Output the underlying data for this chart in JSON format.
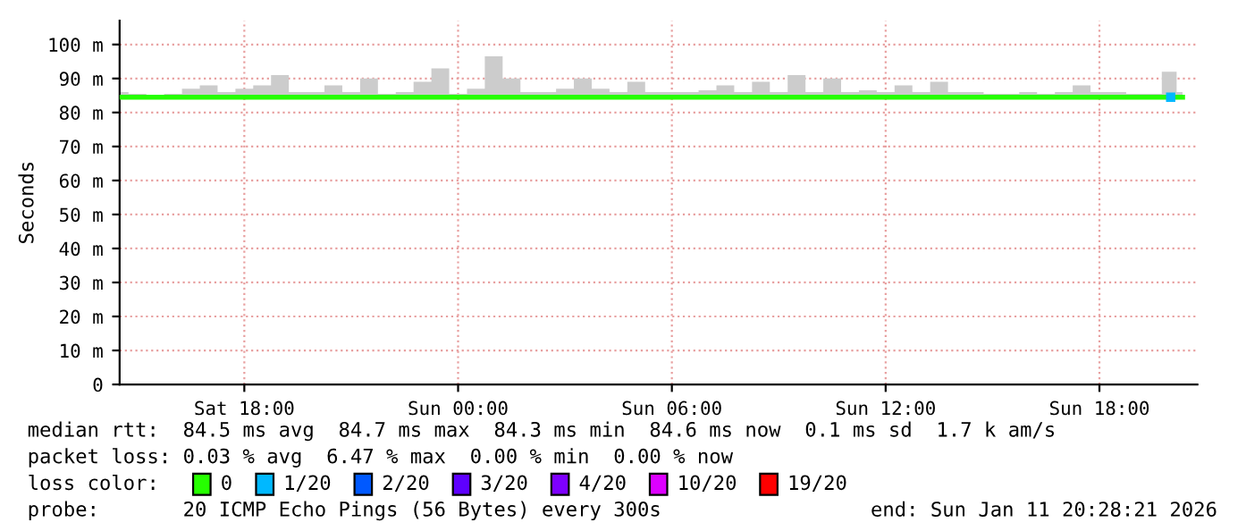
{
  "chart_data": {
    "type": "line",
    "ylabel": "Seconds",
    "x": [
      "2026-01-10T14:30",
      "2026-01-10T15:00",
      "2026-01-10T15:30",
      "2026-01-10T16:00",
      "2026-01-10T16:30",
      "2026-01-10T17:00",
      "2026-01-10T17:30",
      "2026-01-10T18:00",
      "2026-01-10T18:30",
      "2026-01-10T19:00",
      "2026-01-10T19:30",
      "2026-01-10T20:00",
      "2026-01-10T20:30",
      "2026-01-10T21:00",
      "2026-01-10T21:30",
      "2026-01-10T22:00",
      "2026-01-10T22:30",
      "2026-01-10T23:00",
      "2026-01-10T23:30",
      "2026-01-11T00:00",
      "2026-01-11T00:30",
      "2026-01-11T01:00",
      "2026-01-11T01:30",
      "2026-01-11T02:00",
      "2026-01-11T02:30",
      "2026-01-11T03:00",
      "2026-01-11T03:30",
      "2026-01-11T04:00",
      "2026-01-11T04:30",
      "2026-01-11T05:00",
      "2026-01-11T05:30",
      "2026-01-11T06:00",
      "2026-01-11T06:30",
      "2026-01-11T07:00",
      "2026-01-11T07:30",
      "2026-01-11T08:00",
      "2026-01-11T08:30",
      "2026-01-11T09:00",
      "2026-01-11T09:30",
      "2026-01-11T10:00",
      "2026-01-11T10:30",
      "2026-01-11T11:00",
      "2026-01-11T11:30",
      "2026-01-11T12:00",
      "2026-01-11T12:30",
      "2026-01-11T13:00",
      "2026-01-11T13:30",
      "2026-01-11T14:00",
      "2026-01-11T14:30",
      "2026-01-11T15:00",
      "2026-01-11T15:30",
      "2026-01-11T16:00",
      "2026-01-11T16:30",
      "2026-01-11T17:00",
      "2026-01-11T17:30",
      "2026-01-11T18:00",
      "2026-01-11T18:30",
      "2026-01-11T19:00",
      "2026-01-11T19:30",
      "2026-01-11T20:00",
      "2026-01-11T20:20"
    ],
    "xlim": [
      "2026-01-10T14:30",
      "2026-01-11T20:45"
    ],
    "xticks": [
      {
        "value": "2026-01-10T18:00",
        "label": "Sat 18:00"
      },
      {
        "value": "2026-01-11T00:00",
        "label": "Sun 00:00"
      },
      {
        "value": "2026-01-11T06:00",
        "label": "Sun 06:00"
      },
      {
        "value": "2026-01-11T12:00",
        "label": "Sun 12:00"
      },
      {
        "value": "2026-01-11T18:00",
        "label": "Sun 18:00"
      }
    ],
    "ylim": [
      0,
      107
    ],
    "yticks": [
      0,
      {
        "value": 10,
        "label": "10 m"
      },
      {
        "value": 20,
        "label": "20 m"
      },
      {
        "value": 30,
        "label": "30 m"
      },
      {
        "value": 40,
        "label": "40 m"
      },
      {
        "value": 50,
        "label": "50 m"
      },
      {
        "value": 60,
        "label": "60 m"
      },
      {
        "value": 70,
        "label": "70 m"
      },
      {
        "value": 80,
        "label": "80 m"
      },
      {
        "value": 90,
        "label": "90 m"
      },
      {
        "value": 100,
        "label": "100 m"
      }
    ],
    "grid": true,
    "legend": "bottom",
    "legend_title": "loss color:",
    "series": [
      {
        "name": "0",
        "color": "#26ff00",
        "values": [
          84.5,
          84.5,
          84.5,
          84.5,
          84.5,
          84.5,
          84.5,
          84.5,
          84.5,
          84.5,
          84.5,
          84.5,
          84.5,
          84.5,
          84.5,
          84.5,
          84.5,
          84.5,
          84.5,
          84.5,
          84.5,
          84.5,
          84.5,
          84.5,
          84.5,
          84.5,
          84.5,
          84.5,
          84.5,
          84.5,
          84.5,
          84.5,
          84.5,
          84.5,
          84.5,
          84.5,
          84.5,
          84.5,
          84.5,
          84.5,
          84.5,
          84.5,
          84.5,
          84.5,
          84.5,
          84.5,
          84.5,
          84.5,
          84.5,
          84.5,
          84.5,
          84.5,
          84.5,
          84.5,
          84.5,
          84.5,
          84.5,
          84.5,
          84.5,
          84.5,
          84.5
        ],
        "lower": [
          84.3,
          84.3,
          84.3,
          84.3,
          84.3,
          84.3,
          84.3,
          84.3,
          84.3,
          84.3,
          84.3,
          84.3,
          84.3,
          84.3,
          84.3,
          84.3,
          84.3,
          84.3,
          84.3,
          84.3,
          84.3,
          84.3,
          84.3,
          84.3,
          84.3,
          84.3,
          84.3,
          84.3,
          84.3,
          84.3,
          84.3,
          84.3,
          84.3,
          84.3,
          84.3,
          84.3,
          84.3,
          84.3,
          84.3,
          84.3,
          84.3,
          84.3,
          84.3,
          84.3,
          84.3,
          84.3,
          84.3,
          84.3,
          84.3,
          84.3,
          84.3,
          84.3,
          84.3,
          84.3,
          84.3,
          84.3,
          84.3,
          84.3,
          84.3,
          84.3,
          84.3
        ],
        "upper": [
          86,
          85.5,
          85,
          85.5,
          87,
          88,
          86,
          87,
          88,
          91,
          86,
          86,
          88,
          86,
          90,
          85.5,
          86,
          89,
          93,
          85.5,
          87,
          96.5,
          90,
          86,
          86,
          87,
          90,
          87,
          86,
          89,
          86,
          86,
          86,
          86.5,
          88,
          86,
          89,
          86,
          91,
          86,
          90,
          86,
          86.5,
          86,
          88,
          86,
          89,
          86,
          86,
          85.5,
          85.5,
          86,
          85.5,
          86,
          88,
          86,
          86,
          85.5,
          85.5,
          92,
          86
        ]
      },
      {
        "name": "1/20",
        "type": "scatter",
        "color": "#00b8ff",
        "values": [
          null,
          null,
          null,
          null,
          null,
          null,
          null,
          null,
          null,
          null,
          null,
          null,
          null,
          null,
          null,
          null,
          null,
          null,
          null,
          null,
          null,
          null,
          null,
          null,
          null,
          null,
          null,
          null,
          null,
          null,
          null,
          null,
          null,
          null,
          null,
          null,
          null,
          null,
          null,
          null,
          null,
          null,
          null,
          null,
          null,
          null,
          null,
          null,
          null,
          null,
          null,
          null,
          null,
          null,
          null,
          null,
          null,
          null,
          null,
          84.5,
          null
        ]
      },
      {
        "name": "2/20",
        "color": "#0059ff",
        "values": [
          null,
          null,
          null,
          null,
          null,
          null,
          null,
          null,
          null,
          null,
          null,
          null,
          null,
          null,
          null,
          null,
          null,
          null,
          null,
          null,
          null,
          null,
          null,
          null,
          null,
          null,
          null,
          null,
          null,
          null,
          null,
          null,
          null,
          null,
          null,
          null,
          null,
          null,
          null,
          null,
          null,
          null,
          null,
          null,
          null,
          null,
          null,
          null,
          null,
          null,
          null,
          null,
          null,
          null,
          null,
          null,
          null,
          null,
          null,
          null,
          null
        ]
      },
      {
        "name": "3/20",
        "color": "#5e00ff",
        "values": [
          null,
          null,
          null,
          null,
          null,
          null,
          null,
          null,
          null,
          null,
          null,
          null,
          null,
          null,
          null,
          null,
          null,
          null,
          null,
          null,
          null,
          null,
          null,
          null,
          null,
          null,
          null,
          null,
          null,
          null,
          null,
          null,
          null,
          null,
          null,
          null,
          null,
          null,
          null,
          null,
          null,
          null,
          null,
          null,
          null,
          null,
          null,
          null,
          null,
          null,
          null,
          null,
          null,
          null,
          null,
          null,
          null,
          null,
          null,
          null,
          null
        ]
      },
      {
        "name": "4/20",
        "color": "#7e00ff",
        "values": [
          null,
          null,
          null,
          null,
          null,
          null,
          null,
          null,
          null,
          null,
          null,
          null,
          null,
          null,
          null,
          null,
          null,
          null,
          null,
          null,
          null,
          null,
          null,
          null,
          null,
          null,
          null,
          null,
          null,
          null,
          null,
          null,
          null,
          null,
          null,
          null,
          null,
          null,
          null,
          null,
          null,
          null,
          null,
          null,
          null,
          null,
          null,
          null,
          null,
          null,
          null,
          null,
          null,
          null,
          null,
          null,
          null,
          null,
          null,
          null,
          null
        ]
      },
      {
        "name": "10/20",
        "color": "#dd00ff",
        "values": [
          null,
          null,
          null,
          null,
          null,
          null,
          null,
          null,
          null,
          null,
          null,
          null,
          null,
          null,
          null,
          null,
          null,
          null,
          null,
          null,
          null,
          null,
          null,
          null,
          null,
          null,
          null,
          null,
          null,
          null,
          null,
          null,
          null,
          null,
          null,
          null,
          null,
          null,
          null,
          null,
          null,
          null,
          null,
          null,
          null,
          null,
          null,
          null,
          null,
          null,
          null,
          null,
          null,
          null,
          null,
          null,
          null,
          null,
          null,
          null,
          null
        ]
      },
      {
        "name": "19/20",
        "color": "#ff0000",
        "values": [
          null,
          null,
          null,
          null,
          null,
          null,
          null,
          null,
          null,
          null,
          null,
          null,
          null,
          null,
          null,
          null,
          null,
          null,
          null,
          null,
          null,
          null,
          null,
          null,
          null,
          null,
          null,
          null,
          null,
          null,
          null,
          null,
          null,
          null,
          null,
          null,
          null,
          null,
          null,
          null,
          null,
          null,
          null,
          null,
          null,
          null,
          null,
          null,
          null,
          null,
          null,
          null,
          null,
          null,
          null,
          null,
          null,
          null,
          null,
          null,
          null
        ]
      }
    ],
    "annotations": [
      "median rtt:  84.5 ms avg  84.7 ms max  84.3 ms min  84.6 ms now  0.1 ms sd  1.7 k am/s",
      "packet loss: 0.03 % avg  6.47 % max  0.00 % min  0.00 % now",
      "probe:       20 ICMP Echo Pings (56 Bytes) every 300s",
      "end: Sun Jan 11 20:28:21 2026"
    ]
  }
}
